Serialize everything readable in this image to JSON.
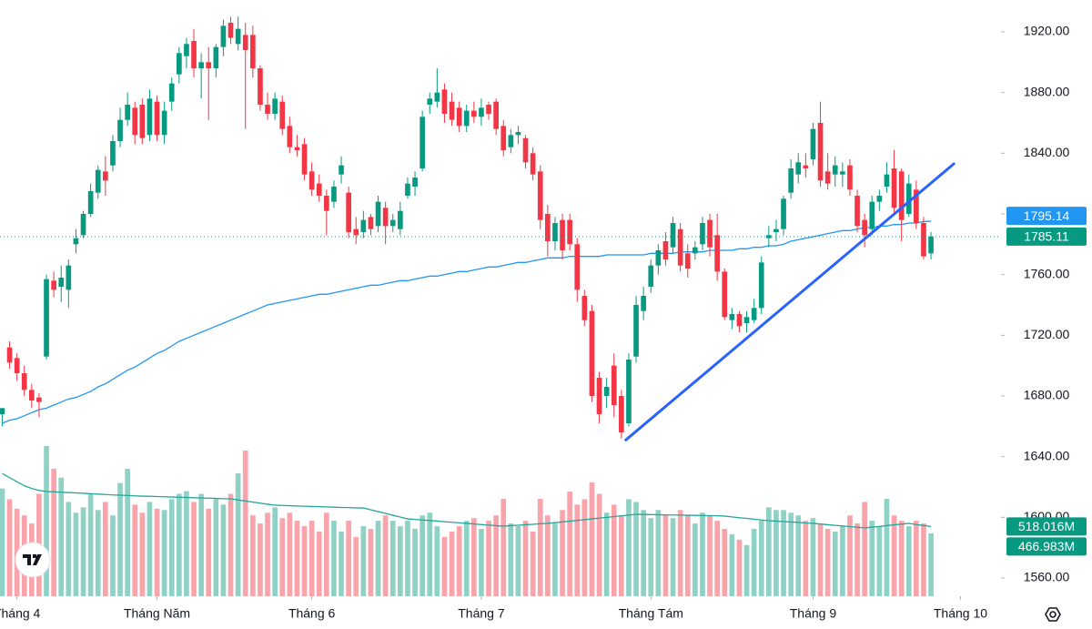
{
  "chart_data": {
    "type": "candlestick",
    "open": [
      1668,
      1712,
      1705,
      1695,
      1684,
      1679,
      1706,
      1756,
      1752,
      1750,
      1780,
      1786,
      1800,
      1814,
      1828,
      1832,
      1848,
      1862,
      1870,
      1872,
      1852,
      1874,
      1852,
      1874,
      1892,
      1904,
      1914,
      1896,
      1900,
      1896,
      1910,
      1926,
      1912,
      1918,
      1918,
      1896,
      1872,
      1866,
      1874,
      1858,
      1844,
      1846,
      1828,
      1820,
      1812,
      1808,
      1826,
      1814,
      1790,
      1788,
      1798,
      1792,
      1804,
      1792,
      1790,
      1812,
      1818,
      1830,
      1872,
      1874,
      1882,
      1874,
      1870,
      1858,
      1868,
      1864,
      1872,
      1874,
      1858,
      1844,
      1852,
      1850,
      1840,
      1828,
      1800,
      1782,
      1796,
      1796,
      1780,
      1746,
      1736,
      1692,
      1680,
      1700,
      1680,
      1662,
      1706,
      1736,
      1752,
      1766,
      1782,
      1778,
      1790,
      1774,
      1774,
      1780,
      1796,
      1786,
      1762,
      1730,
      1734,
      1728,
      1730,
      1738,
      1784,
      1788,
      1790,
      1814,
      1826,
      1832,
      1836,
      1860,
      1828,
      1826,
      1826,
      1832,
      1812,
      1796,
      1790,
      1808,
      1818,
      1830,
      1828,
      1800,
      1816,
      1794,
      1774
    ],
    "high": [
      1672,
      1716,
      1708,
      1700,
      1688,
      1682,
      1760,
      1762,
      1766,
      1770,
      1790,
      1802,
      1820,
      1832,
      1838,
      1852,
      1870,
      1880,
      1874,
      1876,
      1882,
      1878,
      1874,
      1890,
      1910,
      1916,
      1922,
      1906,
      1910,
      1912,
      1928,
      1930,
      1930,
      1926,
      1924,
      1898,
      1880,
      1880,
      1878,
      1864,
      1852,
      1850,
      1834,
      1826,
      1816,
      1822,
      1838,
      1818,
      1798,
      1802,
      1800,
      1812,
      1808,
      1800,
      1808,
      1824,
      1828,
      1868,
      1880,
      1896,
      1886,
      1880,
      1874,
      1872,
      1874,
      1876,
      1874,
      1876,
      1862,
      1856,
      1858,
      1852,
      1844,
      1832,
      1806,
      1798,
      1800,
      1800,
      1784,
      1750,
      1740,
      1696,
      1692,
      1708,
      1684,
      1708,
      1746,
      1752,
      1770,
      1780,
      1788,
      1798,
      1794,
      1780,
      1782,
      1798,
      1800,
      1800,
      1764,
      1738,
      1736,
      1736,
      1744,
      1772,
      1792,
      1796,
      1812,
      1836,
      1840,
      1840,
      1860,
      1874,
      1840,
      1838,
      1834,
      1836,
      1816,
      1800,
      1812,
      1816,
      1834,
      1842,
      1830,
      1826,
      1822,
      1798,
      1788
    ],
    "low": [
      1660,
      1698,
      1690,
      1680,
      1672,
      1666,
      1704,
      1745,
      1742,
      1738,
      1774,
      1784,
      1798,
      1810,
      1812,
      1828,
      1844,
      1858,
      1846,
      1846,
      1848,
      1848,
      1846,
      1868,
      1886,
      1896,
      1890,
      1876,
      1862,
      1890,
      1904,
      1912,
      1908,
      1856,
      1890,
      1868,
      1862,
      1862,
      1852,
      1840,
      1838,
      1822,
      1812,
      1808,
      1786,
      1804,
      1820,
      1784,
      1780,
      1784,
      1786,
      1788,
      1780,
      1788,
      1786,
      1810,
      1812,
      1828,
      1866,
      1870,
      1860,
      1858,
      1854,
      1854,
      1860,
      1858,
      1862,
      1852,
      1838,
      1840,
      1846,
      1830,
      1822,
      1790,
      1772,
      1776,
      1770,
      1776,
      1742,
      1726,
      1676,
      1662,
      1672,
      1666,
      1652,
      1660,
      1702,
      1730,
      1748,
      1760,
      1766,
      1774,
      1762,
      1758,
      1770,
      1776,
      1772,
      1756,
      1730,
      1724,
      1722,
      1722,
      1728,
      1734,
      1778,
      1782,
      1786,
      1810,
      1820,
      1824,
      1832,
      1818,
      1816,
      1818,
      1818,
      1812,
      1788,
      1778,
      1786,
      1802,
      1814,
      1800,
      1782,
      1798,
      1790,
      1770,
      1770
    ],
    "close": [
      1672,
      1702,
      1695,
      1684,
      1677,
      1676,
      1757,
      1750,
      1758,
      1766,
      1784,
      1800,
      1815,
      1829,
      1822,
      1848,
      1862,
      1872,
      1852,
      1850,
      1876,
      1852,
      1868,
      1886,
      1906,
      1912,
      1896,
      1900,
      1896,
      1910,
      1924,
      1916,
      1922,
      1908,
      1896,
      1872,
      1866,
      1876,
      1856,
      1844,
      1842,
      1826,
      1816,
      1812,
      1802,
      1818,
      1832,
      1788,
      1786,
      1796,
      1790,
      1808,
      1792,
      1796,
      1802,
      1820,
      1824,
      1864,
      1876,
      1880,
      1866,
      1862,
      1858,
      1868,
      1864,
      1870,
      1866,
      1856,
      1842,
      1852,
      1854,
      1834,
      1826,
      1796,
      1782,
      1794,
      1776,
      1780,
      1750,
      1730,
      1680,
      1668,
      1686,
      1674,
      1656,
      1704,
      1740,
      1746,
      1766,
      1776,
      1770,
      1794,
      1766,
      1764,
      1778,
      1794,
      1778,
      1762,
      1732,
      1734,
      1726,
      1732,
      1738,
      1768,
      1786,
      1790,
      1810,
      1830,
      1834,
      1830,
      1856,
      1822,
      1820,
      1832,
      1828,
      1816,
      1792,
      1786,
      1808,
      1812,
      1826,
      1804,
      1796,
      1820,
      1794,
      1772,
      1785.11
    ],
    "ma": [
      1662,
      1664,
      1665,
      1667,
      1669,
      1671,
      1672,
      1674,
      1676,
      1678,
      1679,
      1681,
      1683,
      1686,
      1688,
      1691,
      1694,
      1697,
      1699,
      1702,
      1705,
      1708,
      1710,
      1713,
      1716,
      1718,
      1720,
      1722,
      1724,
      1726,
      1728,
      1730,
      1732,
      1734,
      1736,
      1738,
      1740,
      1741,
      1742,
      1743,
      1744,
      1745,
      1746,
      1747,
      1747,
      1748,
      1749,
      1750,
      1751,
      1752,
      1753,
      1753,
      1754,
      1755,
      1756,
      1756,
      1757,
      1758,
      1759,
      1759,
      1760,
      1761,
      1762,
      1762,
      1763,
      1764,
      1765,
      1765,
      1766,
      1767,
      1768,
      1768,
      1769,
      1770,
      1771,
      1771,
      1771,
      1772,
      1772,
      1772,
      1772,
      1772,
      1773,
      1773,
      1773,
      1773,
      1773,
      1773,
      1774,
      1774,
      1774,
      1774,
      1775,
      1775,
      1775,
      1775,
      1776,
      1776,
      1776,
      1776,
      1777,
      1777,
      1778,
      1778,
      1779,
      1779,
      1780,
      1782,
      1783,
      1784,
      1785,
      1786,
      1787,
      1788,
      1789,
      1789,
      1790,
      1791,
      1791,
      1792,
      1792,
      1793,
      1793,
      1794,
      1794,
      1795,
      1795.14
    ],
    "volume": [
      800,
      720,
      650,
      600,
      540,
      760,
      1115,
      946,
      880,
      700,
      620,
      660,
      760,
      640,
      700,
      600,
      840,
      946,
      680,
      620,
      700,
      650,
      640,
      720,
      760,
      780,
      700,
      760,
      650,
      720,
      680,
      760,
      912,
      1081,
      600,
      540,
      620,
      660,
      580,
      620,
      560,
      520,
      560,
      480,
      620,
      560,
      480,
      560,
      440,
      520,
      500,
      560,
      600,
      560,
      520,
      560,
      500,
      600,
      620,
      520,
      440,
      480,
      520,
      560,
      580,
      500,
      560,
      600,
      723,
      540,
      520,
      560,
      480,
      723,
      600,
      540,
      640,
      777,
      680,
      720,
      845,
      760,
      620,
      680,
      600,
      720,
      700,
      640,
      580,
      640,
      600,
      580,
      640,
      600,
      540,
      620,
      600,
      560,
      500,
      460,
      420,
      380,
      500,
      560,
      660,
      640,
      640,
      620,
      600,
      560,
      580,
      540,
      500,
      480,
      520,
      600,
      540,
      700,
      560,
      520,
      723,
      600,
      560,
      520,
      560,
      540,
      466.983
    ],
    "volume_ma": [
      912,
      880,
      850,
      820,
      800,
      785,
      777,
      775,
      772,
      770,
      767,
      764,
      761,
      758,
      755,
      752,
      750,
      748,
      745,
      743,
      742,
      740,
      738,
      736,
      735,
      733,
      731,
      729,
      728,
      726,
      724,
      723,
      715,
      707,
      699,
      691,
      683,
      676,
      674,
      672,
      670,
      668,
      666,
      665,
      663,
      661,
      659,
      658,
      656,
      655,
      642,
      628,
      615,
      601,
      588,
      574,
      570,
      566,
      562,
      558,
      553,
      549,
      545,
      541,
      536,
      532,
      528,
      524,
      520,
      524,
      527,
      531,
      534,
      538,
      541,
      546,
      552,
      557,
      563,
      568,
      574,
      580,
      585,
      591,
      597,
      602,
      608,
      607,
      606,
      605,
      604,
      603,
      602,
      601,
      600,
      599,
      598,
      597,
      595,
      589,
      583,
      578,
      572,
      566,
      561,
      558,
      554,
      551,
      548,
      544,
      541,
      536,
      531,
      526,
      522,
      517,
      512,
      507,
      513,
      518,
      524,
      530,
      535,
      541,
      532,
      525,
      518.016
    ],
    "ma_value_label": "1795.14",
    "close_value_label": "1785.11",
    "volume_ma_value_label": "518.016M",
    "volume_value_label": "466.983M",
    "trendline": {
      "x": [
        84.6,
        129.1
      ],
      "y": [
        1651,
        1833
      ],
      "color": "#2962ff"
    },
    "xlim": [
      -0.3,
      135.5
    ],
    "xticks": [
      {
        "value": 2,
        "label": "Tháng 4"
      },
      {
        "value": 21,
        "label": "Tháng Năm"
      },
      {
        "value": 42,
        "label": "Tháng 6"
      },
      {
        "value": 65,
        "label": "Tháng 7"
      },
      {
        "value": 88,
        "label": "Tháng Tám"
      },
      {
        "value": 110,
        "label": "Tháng 9"
      },
      {
        "value": 130,
        "label": "Tháng 10"
      }
    ],
    "ylim": [
      1548,
      1941
    ],
    "yticks": [
      {
        "value": 1560,
        "label": "1560.00"
      },
      {
        "value": 1600,
        "label": "1600.00"
      },
      {
        "value": 1640,
        "label": "1640.00"
      },
      {
        "value": 1680,
        "label": "1680.00"
      },
      {
        "value": 1720,
        "label": "1720.00"
      },
      {
        "value": 1760,
        "label": "1760.00"
      },
      {
        "value": 1800,
        "label": "1800.00"
      },
      {
        "value": 1840,
        "label": "1840.00"
      },
      {
        "value": 1880,
        "label": "1880.00"
      },
      {
        "value": 1920,
        "label": "1920.00"
      }
    ],
    "volume_ylim": [
      0,
      4426
    ],
    "up_color": "#089981",
    "down_color": "#f23645",
    "ma_color": "#2196f3",
    "volume_ma_color": "#26a69a"
  }
}
